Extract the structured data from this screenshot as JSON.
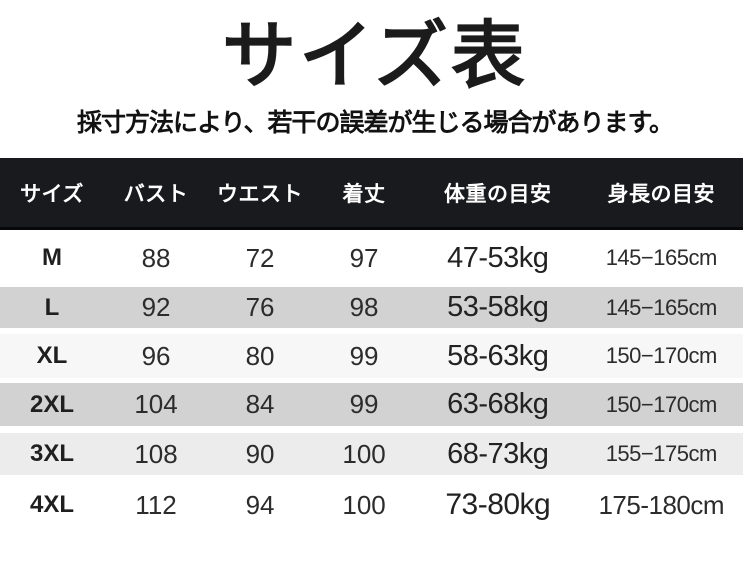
{
  "title": "サイズ表",
  "subtitle": "採寸方法により、若干の誤差が生じる場合があります。",
  "table": {
    "headers": [
      "サイズ",
      "バスト",
      "ウエスト",
      "着丈",
      "体重の目安",
      "身長の目安"
    ],
    "rows": [
      {
        "size": "M",
        "bust": "88",
        "waist": "72",
        "length": "97",
        "weight": "47-53kg",
        "height": "145−165cm"
      },
      {
        "size": "L",
        "bust": "92",
        "waist": "76",
        "length": "98",
        "weight": "53-58kg",
        "height": "145−165cm"
      },
      {
        "size": "XL",
        "bust": "96",
        "waist": "80",
        "length": "99",
        "weight": "58-63kg",
        "height": "150−170cm"
      },
      {
        "size": "2XL",
        "bust": "104",
        "waist": "84",
        "length": "99",
        "weight": "63-68kg",
        "height": "150−170cm"
      },
      {
        "size": "3XL",
        "bust": "108",
        "waist": "90",
        "length": "100",
        "weight": "68-73kg",
        "height": "155−175cm"
      },
      {
        "size": "4XL",
        "bust": "112",
        "waist": "94",
        "length": "100",
        "weight": "73-80kg",
        "height": "175-180cm"
      }
    ]
  },
  "chart_data": {
    "type": "table",
    "title": "サイズ表",
    "subtitle": "採寸方法により、若干の誤差が生じる場合があります。",
    "columns": [
      "サイズ",
      "バスト",
      "ウエスト",
      "着丈",
      "体重の目安",
      "身長の目安"
    ],
    "rows": [
      [
        "M",
        88,
        72,
        97,
        "47-53kg",
        "145−165cm"
      ],
      [
        "L",
        92,
        76,
        98,
        "53-58kg",
        "145−165cm"
      ],
      [
        "XL",
        96,
        80,
        99,
        "58-63kg",
        "150−170cm"
      ],
      [
        "2XL",
        104,
        84,
        99,
        "63-68kg",
        "150−170cm"
      ],
      [
        "3XL",
        108,
        90,
        100,
        "68-73kg",
        "155−175cm"
      ],
      [
        "4XL",
        112,
        94,
        100,
        "73-80kg",
        "175-180cm"
      ]
    ]
  },
  "colors": {
    "header_bg": "#191a1e",
    "header_text": "#ffffff",
    "stripe_gray": "#d2d2d2",
    "stripe_light": "#ececec",
    "stripe_faint": "#f7f7f7"
  }
}
